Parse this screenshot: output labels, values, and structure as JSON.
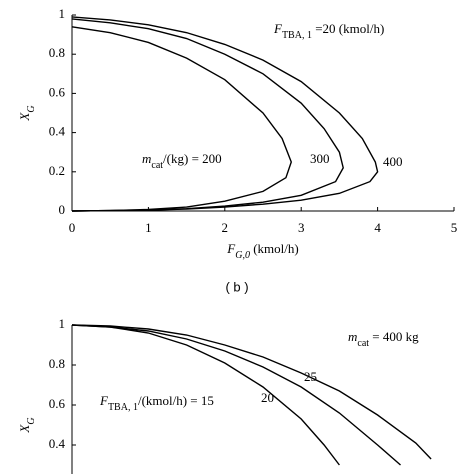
{
  "chart_data": [
    {
      "type": "line",
      "xlim": [
        0,
        5
      ],
      "ylim": [
        0,
        1
      ],
      "xticks": [
        0,
        1,
        2,
        3,
        4,
        5
      ],
      "yticks": [
        0,
        0.2,
        0.4,
        0.6,
        0.8,
        1
      ],
      "color": "#000000",
      "xlabel": [
        {
          "text": "F",
          "italic": true
        },
        {
          "text": "G,0",
          "italic": true,
          "sub": true
        },
        {
          "text": " (kmol/h)"
        }
      ],
      "ylabel": [
        {
          "text": "X",
          "italic": true
        },
        {
          "text": "G",
          "italic": true,
          "sub": true
        }
      ],
      "annotations": [
        [
          {
            "text": "F",
            "italic": true
          },
          {
            "text": "TBA, 1",
            "sub": true
          },
          {
            "text": " =20 (kmol/h)"
          }
        ],
        [
          {
            "text": "m",
            "italic": true
          },
          {
            "text": "cat",
            "sub": true
          },
          {
            "text": "/(kg) = 200"
          }
        ],
        [
          {
            "text": "300"
          }
        ],
        [
          {
            "text": "400"
          }
        ]
      ],
      "series": [
        {
          "x": [
            0,
            0.5,
            1,
            1.5,
            2,
            2.5,
            2.75,
            2.87,
            2.8,
            2.5,
            2,
            1.5,
            1,
            0.5,
            0
          ],
          "values": [
            0.94,
            0.91,
            0.86,
            0.78,
            0.67,
            0.5,
            0.37,
            0.25,
            0.17,
            0.1,
            0.05,
            0.02,
            0.008,
            0.002,
            0
          ]
        },
        {
          "x": [
            0,
            0.5,
            1,
            1.5,
            2,
            2.5,
            3,
            3.3,
            3.5,
            3.55,
            3.45,
            3,
            2.5,
            2,
            1.5,
            1,
            0.5,
            0
          ],
          "values": [
            0.98,
            0.96,
            0.93,
            0.88,
            0.8,
            0.7,
            0.55,
            0.42,
            0.3,
            0.22,
            0.15,
            0.08,
            0.045,
            0.025,
            0.012,
            0.005,
            0.002,
            0
          ]
        },
        {
          "x": [
            0,
            0.5,
            1,
            1.5,
            2,
            2.5,
            3,
            3.5,
            3.8,
            3.97,
            4,
            3.9,
            3.5,
            3,
            2.5,
            2,
            1.5,
            1,
            0.5,
            0
          ],
          "values": [
            0.99,
            0.975,
            0.95,
            0.91,
            0.85,
            0.77,
            0.66,
            0.5,
            0.37,
            0.25,
            0.2,
            0.15,
            0.09,
            0.055,
            0.035,
            0.02,
            0.01,
            0.005,
            0.002,
            0
          ]
        }
      ]
    },
    {
      "type": "line",
      "xlim": [
        0,
        5
      ],
      "ylim": [
        0,
        1
      ],
      "yticks": [
        0.4,
        0.6,
        0.8,
        1
      ],
      "color": "#000000",
      "ylabel": [
        {
          "text": "X",
          "italic": true
        },
        {
          "text": "G",
          "italic": true,
          "sub": true
        }
      ],
      "annotations": [
        [
          {
            "text": "m",
            "italic": true
          },
          {
            "text": "cat",
            "sub": true
          },
          {
            "text": " = 400 kg"
          }
        ],
        [
          {
            "text": "25"
          }
        ],
        [
          {
            "text": "20"
          }
        ],
        [
          {
            "text": "F",
            "italic": true
          },
          {
            "text": "TBA, 1",
            "sub": true
          },
          {
            "text": "/(kmol/h) = 15"
          }
        ]
      ],
      "series": [
        {
          "x": [
            0,
            0.5,
            1,
            1.5,
            2,
            2.5,
            3,
            3.3,
            3.5
          ],
          "values": [
            1,
            0.99,
            0.96,
            0.9,
            0.81,
            0.69,
            0.53,
            0.4,
            0.3
          ]
        },
        {
          "x": [
            0,
            0.5,
            1,
            1.5,
            2,
            2.5,
            3,
            3.5,
            4,
            4.3
          ],
          "values": [
            1,
            0.99,
            0.97,
            0.93,
            0.87,
            0.79,
            0.69,
            0.56,
            0.4,
            0.3
          ]
        },
        {
          "x": [
            0,
            0.5,
            1,
            1.5,
            2,
            2.5,
            3,
            3.5,
            4,
            4.5,
            4.7
          ],
          "values": [
            1,
            0.995,
            0.98,
            0.95,
            0.9,
            0.84,
            0.76,
            0.67,
            0.55,
            0.41,
            0.33
          ]
        }
      ]
    }
  ],
  "caption": "( b )"
}
